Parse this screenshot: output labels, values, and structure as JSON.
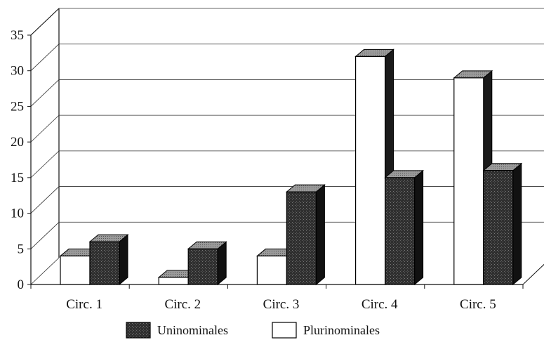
{
  "chart_data": {
    "type": "bar",
    "title": "",
    "xlabel": "",
    "ylabel": "",
    "categories": [
      "Circ. 1",
      "Circ. 2",
      "Circ. 3",
      "Circ. 4",
      "Circ. 5"
    ],
    "series": [
      {
        "name": "Plurinominales",
        "values": [
          4,
          1,
          4,
          32,
          29
        ],
        "color": "#ffffff"
      },
      {
        "name": "Uninominales",
        "values": [
          6,
          5,
          13,
          15,
          16
        ],
        "color": "#2a2a2a"
      }
    ],
    "ylim": [
      0,
      35
    ],
    "yticks": [
      "0",
      "5",
      "10",
      "15",
      "20",
      "25",
      "30",
      "35"
    ],
    "grid": true,
    "style": "3d-clustered",
    "legend_position": "bottom",
    "legend": [
      {
        "label": "Uninominales",
        "series": "Uninominales"
      },
      {
        "label": "Plurinominales",
        "series": "Plurinominales"
      }
    ]
  }
}
